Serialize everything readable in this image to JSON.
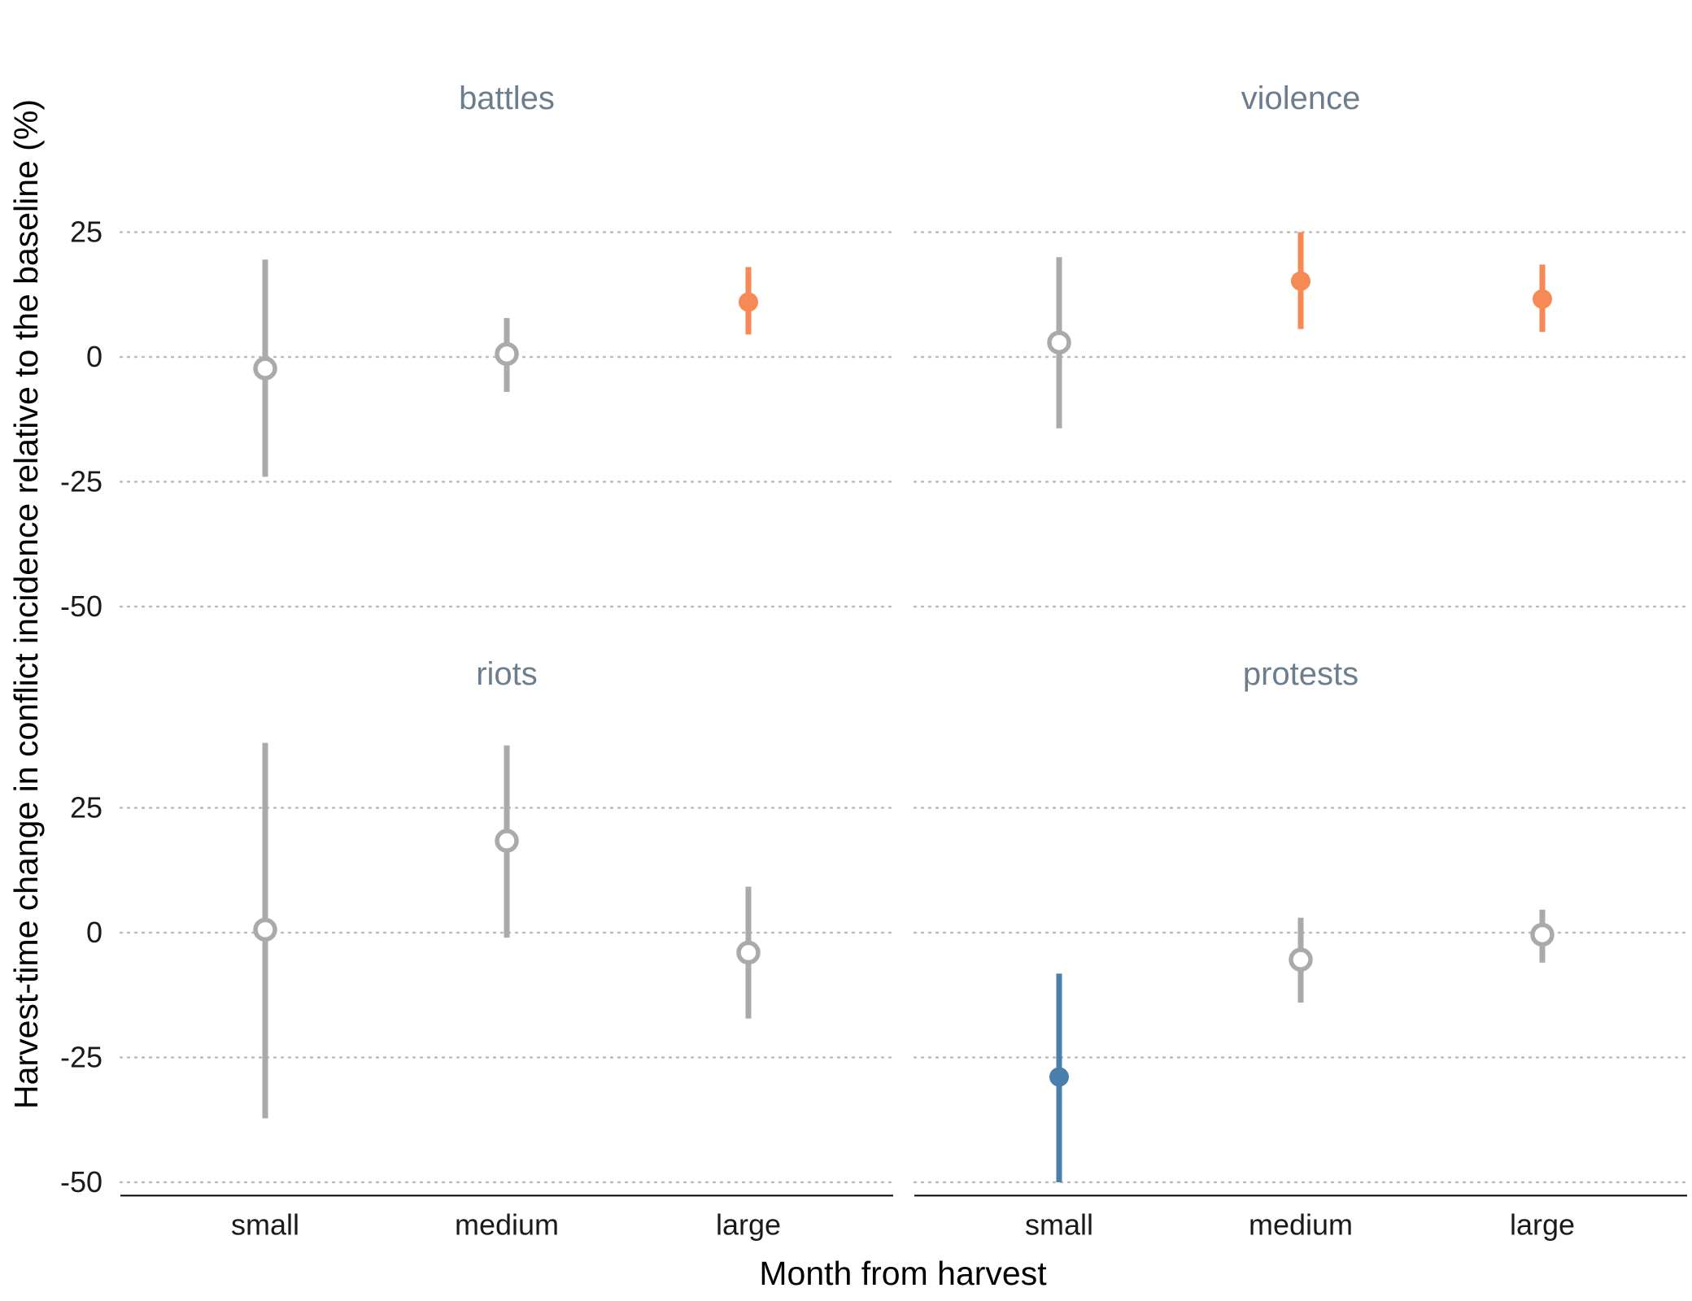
{
  "chart_data": {
    "type": "pointrange",
    "xlabel": "Month from harvest",
    "ylabel": "Harvest-time change in conflict incidence relative to the baseline (%)",
    "categories": [
      "small",
      "medium",
      "large"
    ],
    "y_ticks": [
      25,
      0,
      -25,
      -50
    ],
    "y_tick_labels": [
      "25",
      "0",
      "-25",
      "-50"
    ],
    "ylim": [
      -53,
      50
    ],
    "grid": "dotted horizontal",
    "colors": {
      "significant_positive": "#f68954",
      "significant_negative": "#4a7eab",
      "not_significant": "#aaaaaa",
      "panel_title": "#6c7e8e",
      "grid": "#bbbbbb",
      "axis": "#000000"
    },
    "panels": [
      {
        "title": "battles",
        "points": [
          {
            "category": "small",
            "estimate": -2.3,
            "lower": -24,
            "upper": 19.5,
            "significance": "none"
          },
          {
            "category": "medium",
            "estimate": 0.6,
            "lower": -7,
            "upper": 7.8,
            "significance": "none"
          },
          {
            "category": "large",
            "estimate": 11,
            "lower": 4.5,
            "upper": 18,
            "significance": "positive"
          }
        ]
      },
      {
        "title": "violence",
        "points": [
          {
            "category": "small",
            "estimate": 2.9,
            "lower": -14.3,
            "upper": 20,
            "significance": "none"
          },
          {
            "category": "medium",
            "estimate": 15.2,
            "lower": 5.6,
            "upper": 25,
            "significance": "positive"
          },
          {
            "category": "large",
            "estimate": 11.6,
            "lower": 5,
            "upper": 18.5,
            "significance": "positive"
          }
        ]
      },
      {
        "title": "riots",
        "points": [
          {
            "category": "small",
            "estimate": 0.6,
            "lower": -37.2,
            "upper": 38,
            "significance": "none"
          },
          {
            "category": "medium",
            "estimate": 18.4,
            "lower": -1,
            "upper": 37.5,
            "significance": "none"
          },
          {
            "category": "large",
            "estimate": -4,
            "lower": -17.2,
            "upper": 9.2,
            "significance": "none"
          }
        ]
      },
      {
        "title": "protests",
        "points": [
          {
            "category": "small",
            "estimate": -28.9,
            "lower": -50,
            "upper": -8.2,
            "significance": "negative"
          },
          {
            "category": "medium",
            "estimate": -5.4,
            "lower": -14,
            "upper": 3,
            "significance": "none"
          },
          {
            "category": "large",
            "estimate": -0.4,
            "lower": -6,
            "upper": 4.6,
            "significance": "none"
          }
        ]
      }
    ]
  }
}
